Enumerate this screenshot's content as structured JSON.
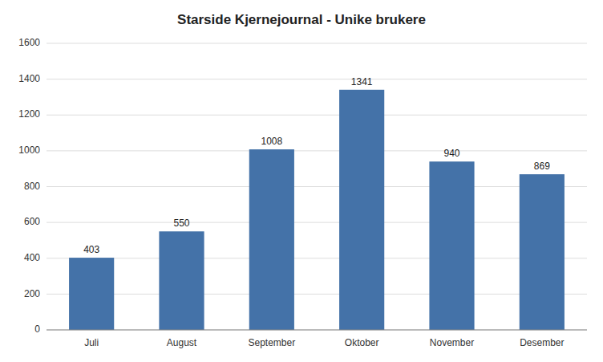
{
  "chart_data": {
    "type": "bar",
    "title": "Starside Kjernejournal - Unike brukere",
    "categories": [
      "Juli",
      "August",
      "September",
      "Oktober",
      "November",
      "Desember"
    ],
    "values": [
      403,
      550,
      1008,
      1341,
      940,
      869
    ],
    "color": "#4472a8",
    "ylim": [
      0,
      1600
    ],
    "yticks": [
      0,
      200,
      400,
      600,
      800,
      1000,
      1200,
      1400,
      1600
    ],
    "grid": true,
    "data_labels": true
  }
}
